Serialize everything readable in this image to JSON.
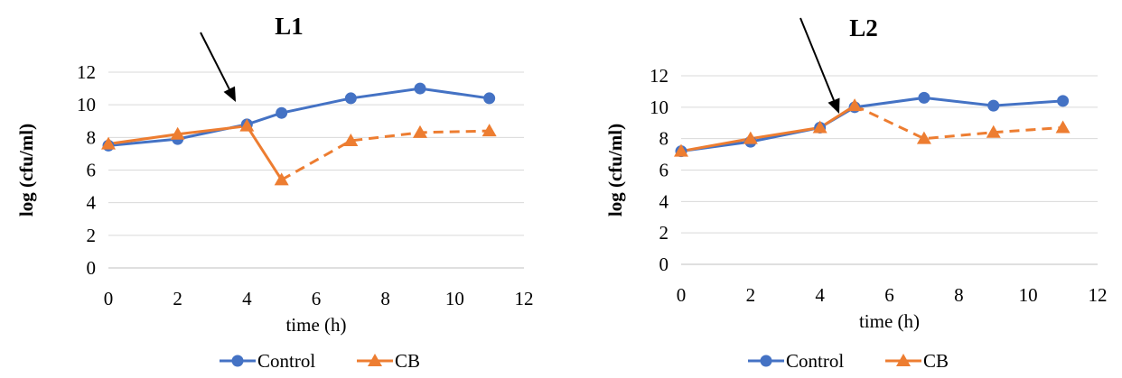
{
  "chart_data": [
    {
      "type": "line",
      "title": "L1",
      "xlabel": "time (h)",
      "ylabel": "log (cfu/ml)",
      "xlim": [
        0,
        12
      ],
      "ylim": [
        0,
        12
      ],
      "xticks": [
        "0",
        "2",
        "4",
        "6",
        "8",
        "10",
        "12"
      ],
      "yticks": [
        "0",
        "2",
        "4",
        "6",
        "8",
        "10",
        "12"
      ],
      "grid": true,
      "legend_position": "bottom",
      "arrow_at_x": 4,
      "series": [
        {
          "name": "Control",
          "color": "#4472C4",
          "marker": "circle",
          "line": "solid",
          "points": [
            [
              0,
              7.5
            ],
            [
              2,
              7.9
            ],
            [
              4,
              8.8
            ],
            [
              5,
              9.5
            ],
            [
              7,
              10.4
            ],
            [
              9,
              11.0
            ],
            [
              11,
              10.4
            ]
          ]
        },
        {
          "name": "CB",
          "color": "#ED7D31",
          "marker": "triangle",
          "line": "solid-then-dashed",
          "dashed_from_index": 3,
          "points": [
            [
              0,
              7.6
            ],
            [
              2,
              8.2
            ],
            [
              4,
              8.7
            ],
            [
              5,
              5.4
            ],
            [
              7,
              7.8
            ],
            [
              9,
              8.3
            ],
            [
              11,
              8.4
            ]
          ]
        }
      ]
    },
    {
      "type": "line",
      "title": "L2",
      "xlabel": "time (h)",
      "ylabel": "log (cfu/ml)",
      "xlim": [
        0,
        12
      ],
      "ylim": [
        0,
        12
      ],
      "xticks": [
        "0",
        "2",
        "4",
        "6",
        "8",
        "10",
        "12"
      ],
      "yticks": [
        "0",
        "2",
        "4",
        "6",
        "8",
        "10",
        "12"
      ],
      "grid": true,
      "legend_position": "bottom",
      "arrow_at_x": 5,
      "series": [
        {
          "name": "Control",
          "color": "#4472C4",
          "marker": "circle",
          "line": "solid",
          "points": [
            [
              0,
              7.2
            ],
            [
              2,
              7.8
            ],
            [
              4,
              8.7
            ],
            [
              5,
              10.0
            ],
            [
              7,
              10.6
            ],
            [
              9,
              10.1
            ],
            [
              11,
              10.4
            ]
          ]
        },
        {
          "name": "CB",
          "color": "#ED7D31",
          "marker": "triangle",
          "line": "solid-then-dashed",
          "dashed_from_index": 3,
          "points": [
            [
              0,
              7.2
            ],
            [
              2,
              8.0
            ],
            [
              4,
              8.7
            ],
            [
              5,
              10.1
            ],
            [
              7,
              8.0
            ],
            [
              9,
              8.4
            ],
            [
              11,
              8.7
            ]
          ]
        }
      ]
    }
  ]
}
